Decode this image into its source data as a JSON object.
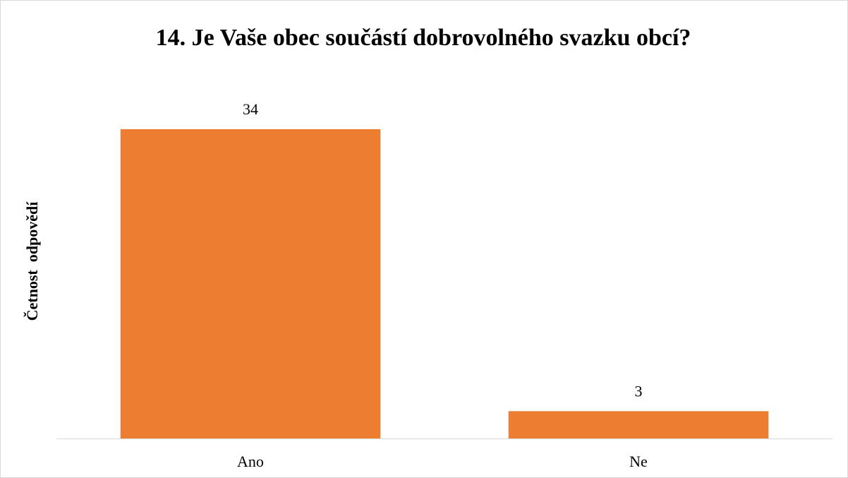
{
  "chart_data": {
    "type": "bar",
    "title": "14. Je Vaše obec součástí dobrovolného svazku obcí?",
    "y_label": "Četnost  odpovědí",
    "categories": [
      "Ano",
      "Ne"
    ],
    "values": [
      34,
      3
    ],
    "color": "#ed7d31"
  }
}
